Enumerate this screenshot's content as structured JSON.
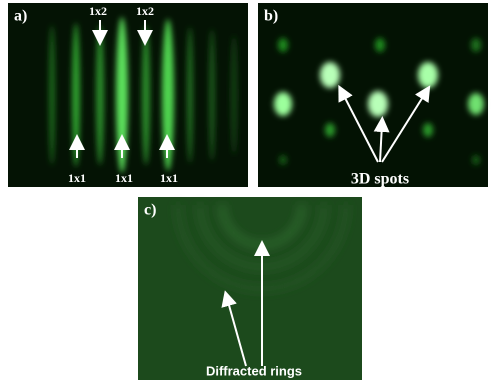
{
  "panels": [
    {
      "label": "a)",
      "annotations": [
        "1x2",
        "1x2",
        "1x1",
        "1x1",
        "1x1"
      ]
    },
    {
      "label": "b)",
      "annotations": [
        "3D spots"
      ]
    },
    {
      "label": "c)",
      "annotations": [
        "Diffracted rings"
      ]
    }
  ]
}
